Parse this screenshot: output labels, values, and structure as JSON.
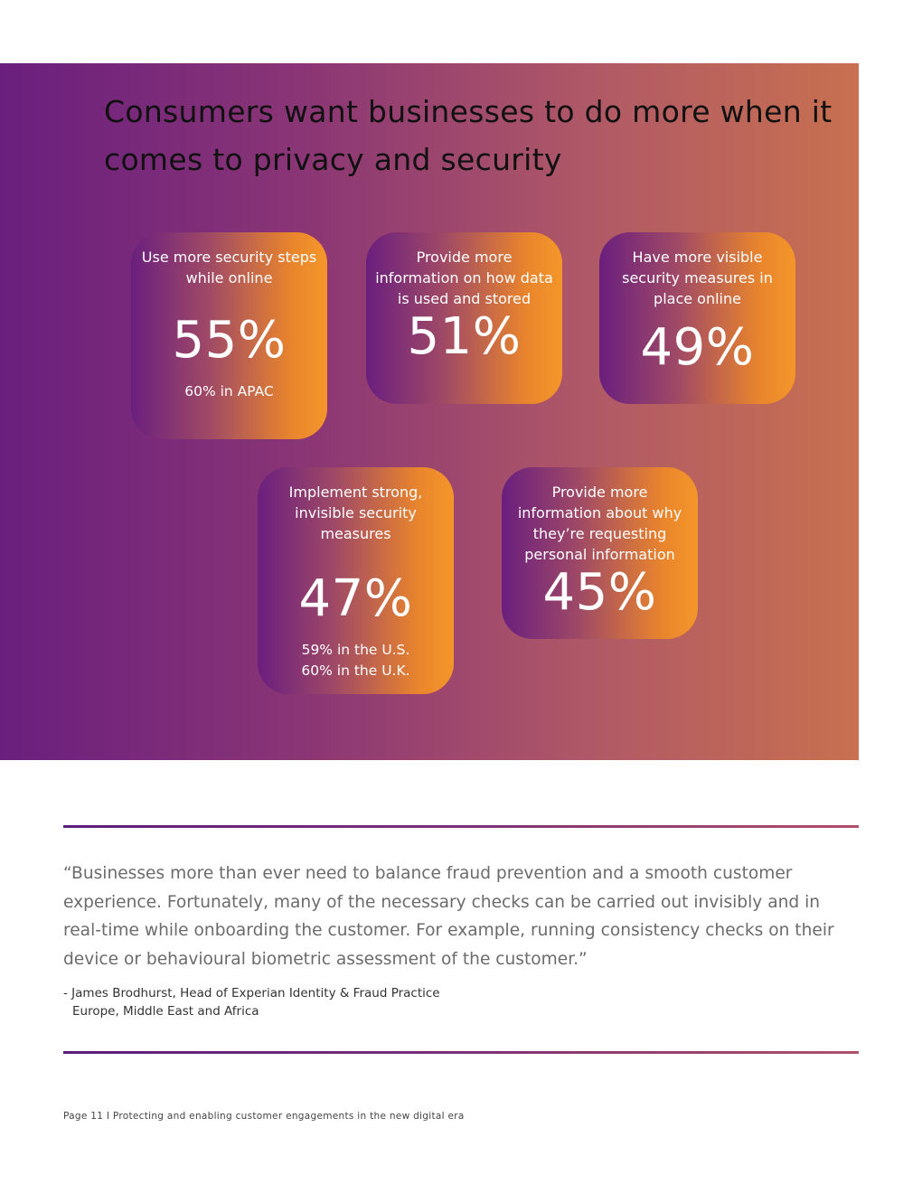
{
  "title": "Consumers want businesses to do more when it comes to privacy and security",
  "cards": [
    {
      "label": "Use more security steps while online",
      "percent": "55%",
      "note_1": "60% in APAC",
      "note_2": ""
    },
    {
      "label": "Provide more information on how data is used and stored",
      "percent": "51%",
      "note_1": "",
      "note_2": ""
    },
    {
      "label": "Have more visible security measures in place online",
      "percent": "49%",
      "note_1": "",
      "note_2": ""
    },
    {
      "label": "Implement strong, invisible security measures",
      "percent": "47%",
      "note_1": "59% in the U.S.",
      "note_2": "60% in the U.K."
    },
    {
      "label": "Provide more information about why they’re requesting personal information",
      "percent": "45%",
      "note_1": "",
      "note_2": ""
    }
  ],
  "quote": "“Businesses more than ever need to balance fraud prevention and a smooth customer experience. Fortunately, many of the necessary checks can be carried out invisibly and in real-time while onboarding the customer. For example, running consistency checks on their device or behavioural biometric assessment of the customer.”",
  "attribution": {
    "line_1": "- James Brodhurst, Head of Experian Identity & Fraud Practice",
    "line_2": "Europe, Middle East and Africa"
  },
  "footer": "Page 11 I Protecting and enabling customer engagements in the new digital era",
  "colors": {
    "banner_start": "#6a1f7e",
    "banner_end": "#c8704f",
    "card_accent": "#f4962a"
  }
}
